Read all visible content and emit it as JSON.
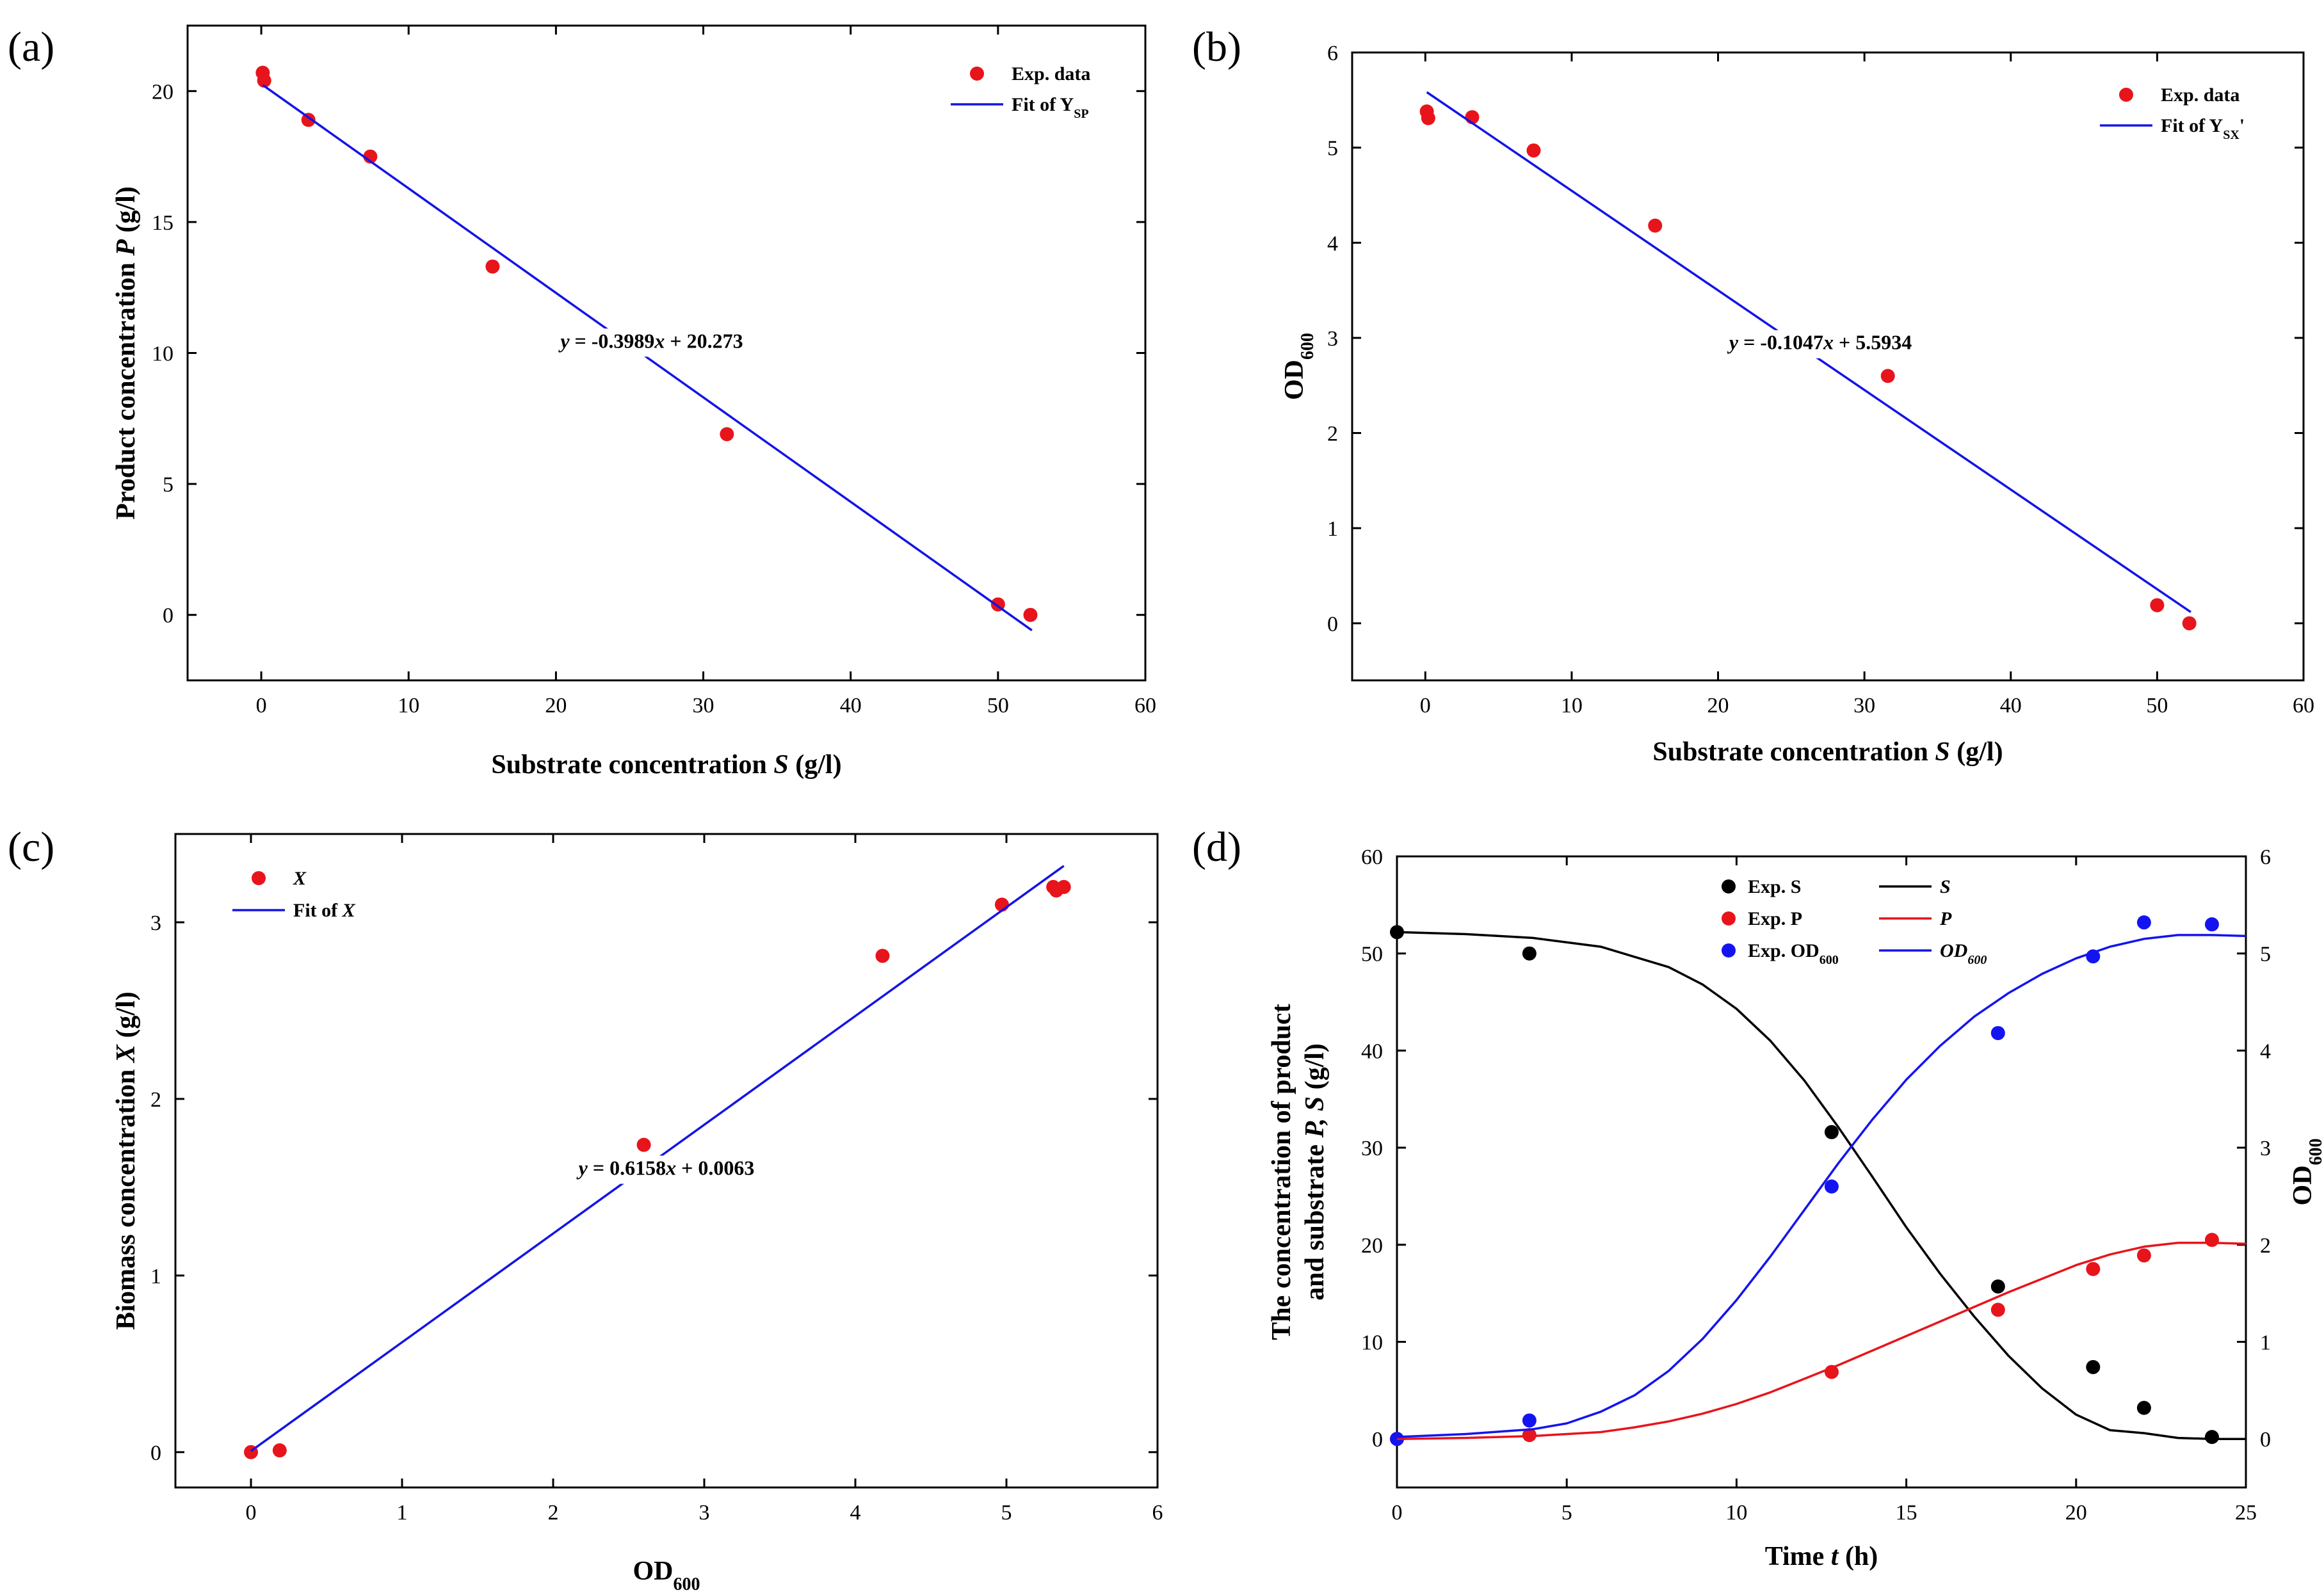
{
  "chart_data": [
    {
      "id": "a",
      "panel_label": "(a)",
      "type": "scatter",
      "xlabel": {
        "pre": "Substrate concentration ",
        "var": "S",
        "post": " (g/l)"
      },
      "ylabel": {
        "pre": "Product concentration ",
        "var": "P",
        "post": " (g/l)"
      },
      "xlim": [
        -5,
        60
      ],
      "ylim": [
        -2.5,
        22.5
      ],
      "xticks": [
        "0",
        "10",
        "20",
        "30",
        "40",
        "50",
        "60"
      ],
      "yticks": [
        "0",
        "5",
        "10",
        "15",
        "20"
      ],
      "grid": false,
      "legend_position": "top-right",
      "series": [
        {
          "name": "Exp. data",
          "kind": "points",
          "color": "#e8141c",
          "x": [
            0.1,
            0.2,
            3.2,
            7.4,
            15.7,
            31.6,
            50.0,
            52.2
          ],
          "y": [
            20.7,
            20.4,
            18.9,
            17.5,
            13.3,
            6.9,
            0.4,
            0.0
          ]
        },
        {
          "name_main": "Fit of Y",
          "name_sub": "SP",
          "kind": "fit-line",
          "color": "#1414e6",
          "slope": -0.3989,
          "intercept": 20.273,
          "x_range": [
            0.1,
            52.3
          ]
        }
      ],
      "annotations": [
        {
          "text_var": "y",
          "text_rest": " = -0.3989",
          "text_var2": "x",
          "text_tail": " + 20.273",
          "x": 26.5,
          "y": 10.2
        }
      ]
    },
    {
      "id": "b",
      "panel_label": "(b)",
      "type": "scatter",
      "xlabel": {
        "pre": "Substrate concentration ",
        "var": "S",
        "post": " (g/l)"
      },
      "ylabel": {
        "main": "OD",
        "sub": "600"
      },
      "xlim": [
        -5,
        60
      ],
      "ylim": [
        -0.6,
        6
      ],
      "xticks": [
        "0",
        "10",
        "20",
        "30",
        "40",
        "50",
        "60"
      ],
      "yticks": [
        "0",
        "1",
        "2",
        "3",
        "4",
        "5",
        "6"
      ],
      "grid": false,
      "legend_position": "top-right",
      "series": [
        {
          "name": "Exp. data",
          "kind": "points",
          "color": "#e8141c",
          "x": [
            0.1,
            0.2,
            3.2,
            7.4,
            15.7,
            31.6,
            50.0,
            52.2
          ],
          "y": [
            5.38,
            5.31,
            5.32,
            4.97,
            4.18,
            2.6,
            0.19,
            0.0
          ]
        },
        {
          "name_main": "Fit of Y",
          "name_sub": "SX",
          "name_tail": "'",
          "kind": "fit-line",
          "color": "#1414e6",
          "slope": -0.1047,
          "intercept": 5.5934,
          "x_range": [
            0.1,
            52.3
          ]
        }
      ],
      "annotations": [
        {
          "text_var": "y",
          "text_rest": " = -0.1047",
          "text_var2": "x",
          "text_tail": " + 5.5934",
          "x": 27.0,
          "y": 2.88
        }
      ]
    },
    {
      "id": "c",
      "panel_label": "(c)",
      "type": "scatter",
      "xlabel": {
        "main": "OD",
        "sub": "600"
      },
      "ylabel": {
        "pre": "Biomass concentration ",
        "var": "X",
        "post": " (g/l)"
      },
      "xlim": [
        -0.5,
        6
      ],
      "ylim": [
        -0.2,
        3.5
      ],
      "xticks": [
        "0",
        "1",
        "2",
        "3",
        "4",
        "5",
        "6"
      ],
      "yticks": [
        "0",
        "1",
        "2",
        "3"
      ],
      "grid": false,
      "legend_position": "top-left",
      "series": [
        {
          "name": "X",
          "kind": "points",
          "color": "#e8141c",
          "x": [
            0.0,
            0.19,
            2.6,
            4.18,
            4.97,
            5.31,
            5.33,
            5.38
          ],
          "y": [
            0.0,
            0.01,
            1.74,
            2.81,
            3.1,
            3.2,
            3.18,
            3.2
          ]
        },
        {
          "name_main": "Fit of ",
          "name_var": "X",
          "kind": "fit-line",
          "color": "#1414e6",
          "slope": 0.6158,
          "intercept": 0.0063,
          "x_range": [
            0.0,
            5.38
          ]
        }
      ],
      "annotations": [
        {
          "text_var": "y",
          "text_rest": " = 0.6158",
          "text_var2": "x",
          "text_tail": " + 0.0063",
          "x": 2.75,
          "y": 1.57
        }
      ]
    },
    {
      "id": "d",
      "panel_label": "(d)",
      "type": "line",
      "xlabel": {
        "pre": "Time ",
        "var": "t",
        "post": " (h)"
      },
      "ylabel": {
        "line1": "The concentration of product",
        "line2_pre": "and substrate  ",
        "line2_var": "P, S",
        "line2_post": " (g/l)"
      },
      "y2label": {
        "main": "OD",
        "sub": "600"
      },
      "xlim": [
        0,
        25
      ],
      "ylim": [
        -5,
        60
      ],
      "y2lim": [
        -0.5,
        6
      ],
      "xticks": [
        "0",
        "5",
        "10",
        "15",
        "20",
        "25"
      ],
      "yticks": [
        "0",
        "10",
        "20",
        "30",
        "40",
        "50",
        "60"
      ],
      "y2ticks": [
        "0",
        "1",
        "2",
        "3",
        "4",
        "5",
        "6"
      ],
      "grid": false,
      "legend_position": "top-center",
      "series": [
        {
          "name": "Exp. S",
          "kind": "points",
          "axis": "left",
          "color": "#000000",
          "x": [
            0,
            3.9,
            12.8,
            17.7,
            20.5,
            22.0,
            24.0
          ],
          "y": [
            52.2,
            50.0,
            31.6,
            15.7,
            7.4,
            3.2,
            0.2
          ]
        },
        {
          "name": "Exp. P",
          "kind": "points",
          "axis": "left",
          "color": "#e8141c",
          "x": [
            0,
            3.9,
            12.8,
            17.7,
            20.5,
            22.0,
            24.0
          ],
          "y": [
            0.0,
            0.4,
            6.9,
            13.3,
            17.5,
            18.9,
            20.5
          ]
        },
        {
          "name_main": "Exp. OD",
          "name_sub": "600",
          "kind": "points",
          "axis": "right",
          "color": "#1414f0",
          "x": [
            0,
            3.9,
            12.8,
            17.7,
            20.5,
            22.0,
            24.0
          ],
          "y": [
            0.0,
            0.19,
            2.6,
            4.18,
            4.97,
            5.32,
            5.3
          ]
        },
        {
          "name_var": "S",
          "kind": "curve",
          "axis": "left",
          "color": "#000000",
          "x": [
            0,
            2,
            4,
            6,
            8,
            9,
            10,
            11,
            12,
            13,
            14,
            15,
            16,
            17,
            18,
            19,
            20,
            21,
            22,
            23,
            24,
            25
          ],
          "y": [
            52.2,
            52.0,
            51.6,
            50.7,
            48.6,
            46.8,
            44.3,
            41.0,
            36.9,
            32.1,
            27.0,
            21.8,
            17.0,
            12.6,
            8.6,
            5.2,
            2.5,
            0.9,
            0.6,
            0.1,
            0.0,
            0.0
          ]
        },
        {
          "name_var": "P",
          "kind": "curve",
          "axis": "left",
          "color": "#e8141c",
          "x": [
            0,
            2,
            4,
            6,
            7,
            8,
            9,
            10,
            11,
            12,
            13,
            14,
            15,
            16,
            17,
            18,
            19,
            20,
            21,
            22,
            23,
            24,
            25
          ],
          "y": [
            0.0,
            0.1,
            0.3,
            0.7,
            1.2,
            1.8,
            2.6,
            3.6,
            4.8,
            6.2,
            7.6,
            9.1,
            10.6,
            12.1,
            13.6,
            15.1,
            16.5,
            17.9,
            19.0,
            19.8,
            20.2,
            20.2,
            20.1
          ]
        },
        {
          "name_var": "OD",
          "name_sub": "600",
          "kind": "curve",
          "axis": "right",
          "color": "#1414f0",
          "x": [
            0,
            2,
            4,
            5,
            6,
            7,
            8,
            9,
            10,
            11,
            12,
            13,
            14,
            15,
            16,
            17,
            18,
            19,
            20,
            21,
            22,
            23,
            24,
            25
          ],
          "y": [
            0.02,
            0.05,
            0.1,
            0.16,
            0.28,
            0.45,
            0.7,
            1.03,
            1.43,
            1.88,
            2.36,
            2.84,
            3.29,
            3.7,
            4.05,
            4.35,
            4.59,
            4.79,
            4.95,
            5.07,
            5.15,
            5.19,
            5.19,
            5.18
          ]
        }
      ]
    }
  ]
}
